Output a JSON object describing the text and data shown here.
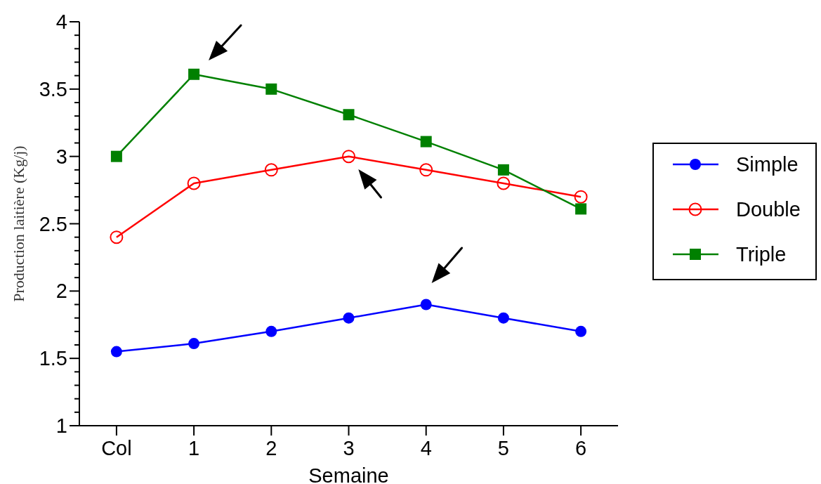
{
  "chart_data": {
    "type": "line",
    "xlabel": "Semaine",
    "ylabel": "Production laitière (Kg/j)",
    "categories": [
      "Col",
      "1",
      "2",
      "3",
      "4",
      "5",
      "6"
    ],
    "ylim": [
      1,
      4
    ],
    "yticks": [
      1,
      {
        "value": 1.1,
        "label": null
      },
      {
        "value": 1.2,
        "label": null
      },
      {
        "value": 1.3,
        "label": null
      },
      {
        "value": 1.4,
        "label": null
      },
      1.5,
      {
        "value": 1.6,
        "label": null
      },
      {
        "value": 1.7,
        "label": null
      },
      {
        "value": 1.8,
        "label": null
      },
      {
        "value": 1.9,
        "label": null
      },
      2,
      {
        "value": 2.1,
        "label": null
      },
      {
        "value": 2.2,
        "label": null
      },
      {
        "value": 2.3,
        "label": null
      },
      {
        "value": 2.4,
        "label": null
      },
      2.5,
      {
        "value": 2.6,
        "label": null
      },
      {
        "value": 2.7,
        "label": null
      },
      {
        "value": 2.8,
        "label": null
      },
      {
        "value": 2.9,
        "label": null
      },
      3,
      {
        "value": 3.1,
        "label": null
      },
      {
        "value": 3.2,
        "label": null
      },
      {
        "value": 3.3,
        "label": null
      },
      {
        "value": 3.4,
        "label": null
      },
      3.5,
      {
        "value": 3.6,
        "label": null
      },
      {
        "value": 3.7,
        "label": null
      },
      {
        "value": 3.8,
        "label": null
      },
      {
        "value": 3.9,
        "label": null
      },
      4
    ],
    "grid": false,
    "legend": "right",
    "line_style": "solid",
    "series": [
      {
        "name": "Simple",
        "color": "#0000ff",
        "marker": "circle",
        "values": [
          1.55,
          1.61,
          1.7,
          1.8,
          1.9,
          1.8,
          1.7
        ]
      },
      {
        "name": "Double",
        "color": "#ff0000",
        "marker": "open-circle",
        "values": [
          2.4,
          2.8,
          2.9,
          3.0,
          2.9,
          2.8,
          2.7
        ]
      },
      {
        "name": "Triple",
        "color": "#008000",
        "marker": "square",
        "values": [
          3.0,
          3.61,
          3.5,
          3.31,
          3.11,
          2.9,
          2.61
        ]
      }
    ]
  }
}
